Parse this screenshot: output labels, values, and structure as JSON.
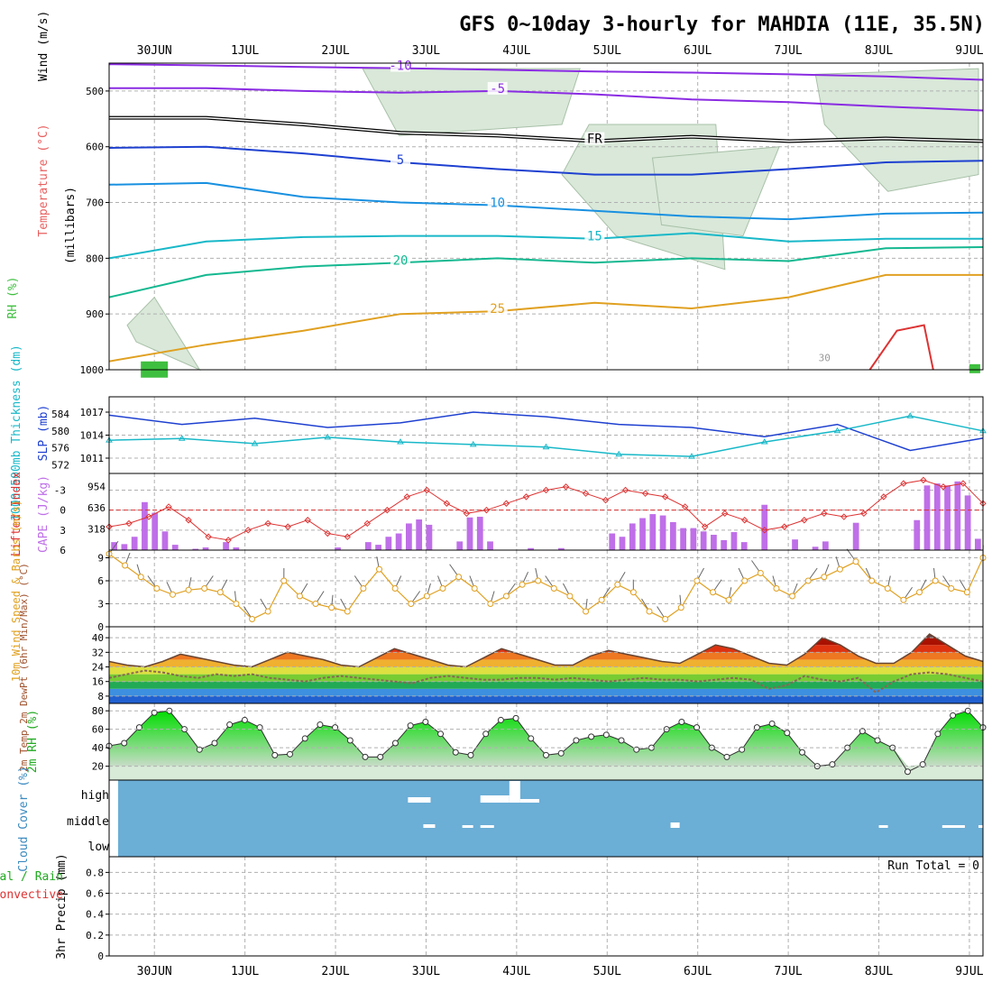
{
  "header": {
    "title": "GFS 0~10day 3-hourly for MAHDIA (11E, 35.5N)"
  },
  "colors": {
    "rh_green": "#3fbf3f",
    "purple": "#8a2be2",
    "blue": "#1e40d0",
    "cyan": "#18b8c8",
    "teal": "#14b890",
    "orange": "#e0a020",
    "red": "#dd3333",
    "cloud": "#6baed6",
    "precip_green": "#22aa22"
  },
  "time_axis": {
    "labels": [
      "30JUN",
      "1JUL",
      "2JUL",
      "3JUL",
      "4JUL",
      "5JUL",
      "6JUL",
      "7JUL",
      "8JUL",
      "9JUL"
    ],
    "label_x_days": [
      0.5,
      1.5,
      2.5,
      3.5,
      4.5,
      5.5,
      6.5,
      7.5,
      8.5,
      9.5
    ],
    "range_days": [
      0,
      9.65
    ]
  },
  "chart_data": [
    {
      "type": "line",
      "ylabel": "(millibars)",
      "panel_labels": [
        "RH (%)",
        "Temperature (°C)",
        "Wind (m/s)"
      ],
      "y_ticks": [
        500,
        600,
        700,
        800,
        900,
        1000
      ],
      "ylim": [
        1000,
        450
      ],
      "grid": true,
      "contour_labels": [
        "-10",
        "-5",
        "FR",
        "5",
        "10",
        "15",
        "20",
        "25",
        "30"
      ],
      "series": [
        {
          "label": "-10",
          "pressure_mb": [
            452,
            454,
            457,
            459,
            462,
            465,
            467,
            470,
            474,
            480
          ]
        },
        {
          "label": "-5",
          "pressure_mb": [
            495,
            495,
            500,
            503,
            500,
            506,
            515,
            520,
            528,
            535
          ]
        },
        {
          "label": "FR",
          "pressure_mb": [
            548,
            548,
            560,
            575,
            580,
            590,
            582,
            590,
            585,
            590
          ]
        },
        {
          "label": "5",
          "pressure_mb": [
            602,
            600,
            612,
            628,
            640,
            650,
            650,
            640,
            628,
            625
          ]
        },
        {
          "label": "10",
          "pressure_mb": [
            668,
            665,
            690,
            700,
            705,
            715,
            725,
            730,
            720,
            718
          ]
        },
        {
          "label": "15",
          "pressure_mb": [
            800,
            770,
            762,
            760,
            760,
            765,
            755,
            770,
            765,
            765
          ]
        },
        {
          "label": "20",
          "pressure_mb": [
            870,
            830,
            815,
            808,
            800,
            808,
            800,
            805,
            782,
            780
          ]
        },
        {
          "label": "25",
          "pressure_mb": [
            985,
            955,
            930,
            900,
            895,
            880,
            890,
            870,
            830,
            830
          ]
        }
      ]
    },
    {
      "type": "line",
      "ylabel_left": "1000-500mb Thickness (dm)",
      "ylabel_right": "SLP (mb)",
      "y_ticks_left": [
        572,
        576,
        580,
        584
      ],
      "y_ticks_right": [
        1011,
        1014,
        1017
      ],
      "series": [
        {
          "name": "SLP",
          "values": [
            1016.6,
            1015.4,
            1016.2,
            1015.0,
            1015.6,
            1017.0,
            1016.4,
            1015.4,
            1015.0,
            1013.8,
            1015.4,
            1012.0,
            1013.6
          ]
        },
        {
          "name": "Thickness",
          "values": [
            577.8,
            578.2,
            577.0,
            578.5,
            577.4,
            576.8,
            576.2,
            574.5,
            574.0,
            577.4,
            580.0,
            583.5,
            580.0
          ]
        }
      ]
    },
    {
      "type": "bar",
      "ylabel_left": "Lifted Index",
      "ylabel_right": "CAPE (J/kg)",
      "y_ticks_left": [
        6,
        3,
        0,
        -3
      ],
      "y_ticks_right": [
        318,
        636,
        954
      ],
      "series": [
        {
          "name": "CAPE",
          "values": [
            120,
            90,
            200,
            720,
            560,
            280,
            80,
            0,
            20,
            40,
            0,
            120,
            40,
            0,
            0,
            0,
            0,
            0,
            0,
            0,
            0,
            0,
            40,
            0,
            0,
            120,
            80,
            200,
            250,
            400,
            460,
            380,
            0,
            0,
            130,
            490,
            500,
            130,
            0,
            0,
            0,
            30,
            0,
            0,
            30,
            0,
            0,
            0,
            0,
            250,
            200,
            400,
            480,
            540,
            520,
            420,
            330,
            330,
            280,
            230,
            150,
            270,
            120,
            0,
            680,
            0,
            0,
            160,
            0,
            50,
            130,
            0,
            0,
            410,
            0,
            0,
            0,
            0,
            0,
            450,
            970,
            1000,
            970,
            1030,
            820,
            170
          ]
        },
        {
          "name": "Lifted Index",
          "values": [
            2.5,
            2.0,
            1.0,
            -0.5,
            1.5,
            4.0,
            4.5,
            3.0,
            2.0,
            2.5,
            1.5,
            3.5,
            4.0,
            2.0,
            0.0,
            -2.0,
            -3.0,
            -1.0,
            0.5,
            0.0,
            -1.0,
            -2.0,
            -3.0,
            -3.5,
            -2.5,
            -1.5,
            -3.0,
            -2.5,
            -2.0,
            -0.5,
            2.5,
            0.5,
            1.5,
            3.0,
            2.5,
            1.5,
            0.5,
            1.0,
            0.5,
            -2.0,
            -4.0,
            -4.5,
            -3.5,
            -4.0,
            -1.0
          ]
        }
      ]
    },
    {
      "type": "line",
      "ylabel": "10m Wind Speed & Barbs (m/s)",
      "y_ticks": [
        0,
        3,
        6,
        9
      ],
      "series": [
        {
          "name": "Speed",
          "values": [
            9.5,
            8.0,
            6.5,
            5.0,
            4.2,
            4.8,
            5.0,
            4.5,
            3.0,
            1.0,
            2.0,
            6.0,
            4.0,
            3.0,
            2.5,
            2.0,
            5.0,
            7.5,
            5.0,
            3.0,
            4.0,
            5.0,
            6.5,
            5.0,
            3.0,
            4.0,
            5.5,
            6.0,
            5.0,
            4.0,
            2.0,
            3.5,
            5.5,
            4.5,
            2.0,
            1.0,
            2.5,
            6.0,
            4.5,
            3.5,
            6.0,
            7.0,
            5.0,
            4.0,
            6.0,
            6.5,
            7.5,
            8.5,
            6.0,
            5.0,
            3.5,
            4.5,
            6.0,
            5.0,
            4.5,
            9.0
          ]
        }
      ]
    },
    {
      "type": "area",
      "ylabel": "2m Temp 2m DewPt (6hr Min/Max) (°C)",
      "y_ticks": [
        8,
        16,
        24,
        32,
        40
      ],
      "series": [
        {
          "name": "2m Temp",
          "values": [
            27,
            25,
            24,
            27,
            31,
            29,
            27,
            25,
            24,
            28,
            32,
            30,
            28,
            25,
            24,
            29,
            34,
            31,
            28,
            25,
            24,
            29,
            34,
            31,
            28,
            25,
            25,
            30,
            33,
            31,
            29,
            27,
            26,
            31,
            36,
            34,
            30,
            26,
            25,
            31,
            40,
            36,
            30,
            26,
            26,
            32,
            42,
            36,
            30,
            27
          ]
        },
        {
          "name": "2m DewPt",
          "values": [
            18,
            20,
            22,
            21,
            19,
            18,
            20,
            19,
            20,
            18,
            17,
            16,
            18,
            19,
            18,
            17,
            16,
            15,
            18,
            19,
            18,
            17,
            17,
            18,
            18,
            17,
            18,
            17,
            16,
            17,
            18,
            17,
            17,
            16,
            17,
            18,
            17,
            12,
            14,
            19,
            17,
            16,
            18,
            10,
            16,
            20,
            21,
            20,
            18,
            16
          ]
        }
      ]
    },
    {
      "type": "area",
      "ylabel": "2m RH (%)",
      "y_ticks": [
        20,
        40,
        60,
        80
      ],
      "series": [
        {
          "name": "2m RH",
          "values": [
            42,
            45,
            62,
            78,
            80,
            60,
            38,
            45,
            65,
            70,
            62,
            32,
            33,
            50,
            65,
            62,
            48,
            30,
            30,
            45,
            64,
            68,
            55,
            35,
            32,
            55,
            70,
            72,
            50,
            32,
            34,
            48,
            52,
            54,
            48,
            38,
            40,
            60,
            68,
            62,
            40,
            30,
            38,
            62,
            66,
            56,
            35,
            20,
            22,
            40,
            58,
            48,
            40,
            14,
            22,
            55,
            75,
            80,
            62
          ]
        }
      ]
    },
    {
      "type": "heatmap",
      "ylabel": "Cloud Cover (%)",
      "y_labels": [
        "high",
        "middle",
        "low"
      ],
      "cells": [
        {
          "day_start": 3.3,
          "day_end": 3.55,
          "level": "high",
          "percent": 15
        },
        {
          "day_start": 4.1,
          "day_end": 4.42,
          "level": "high",
          "percent": 20
        },
        {
          "day_start": 4.42,
          "day_end": 4.54,
          "level": "high",
          "percent": 60
        },
        {
          "day_start": 4.54,
          "day_end": 4.75,
          "level": "high",
          "percent": 10
        },
        {
          "day_start": 3.47,
          "day_end": 3.6,
          "level": "middle",
          "percent": 10
        },
        {
          "day_start": 3.9,
          "day_end": 4.02,
          "level": "middle",
          "percent": 5
        },
        {
          "day_start": 4.1,
          "day_end": 4.25,
          "level": "middle",
          "percent": 5
        },
        {
          "day_start": 6.2,
          "day_end": 6.3,
          "level": "middle",
          "percent": 15
        },
        {
          "day_start": 8.5,
          "day_end": 8.6,
          "level": "middle",
          "percent": 5
        },
        {
          "day_start": 9.2,
          "day_end": 9.45,
          "level": "middle",
          "percent": 5
        },
        {
          "day_start": 9.6,
          "day_end": 9.65,
          "level": "middle",
          "percent": 5
        }
      ]
    },
    {
      "type": "bar",
      "ylabel": "3hr Precip (mm)",
      "series_labels": [
        "Total / Rain",
        "Convective"
      ],
      "y_ticks": [
        0,
        0.2,
        0.4,
        0.6,
        0.8
      ],
      "ylim": [
        0,
        0.95
      ],
      "annotation": "Run Total = 0",
      "values": []
    }
  ]
}
